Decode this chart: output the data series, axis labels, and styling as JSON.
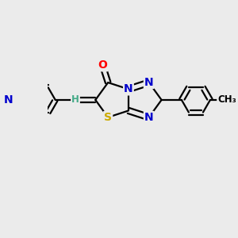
{
  "bg_color": "#ebebeb",
  "bond_color": "#000000",
  "bond_width": 1.6,
  "atom_colors": {
    "O": "#ff0000",
    "N": "#0000cc",
    "S": "#ccaa00",
    "H": "#44aa88",
    "C": "#000000"
  },
  "font_size_atom": 10,
  "font_size_small": 8.5,
  "xlim": [
    -1.7,
    1.9
  ],
  "ylim": [
    -2.1,
    1.3
  ]
}
